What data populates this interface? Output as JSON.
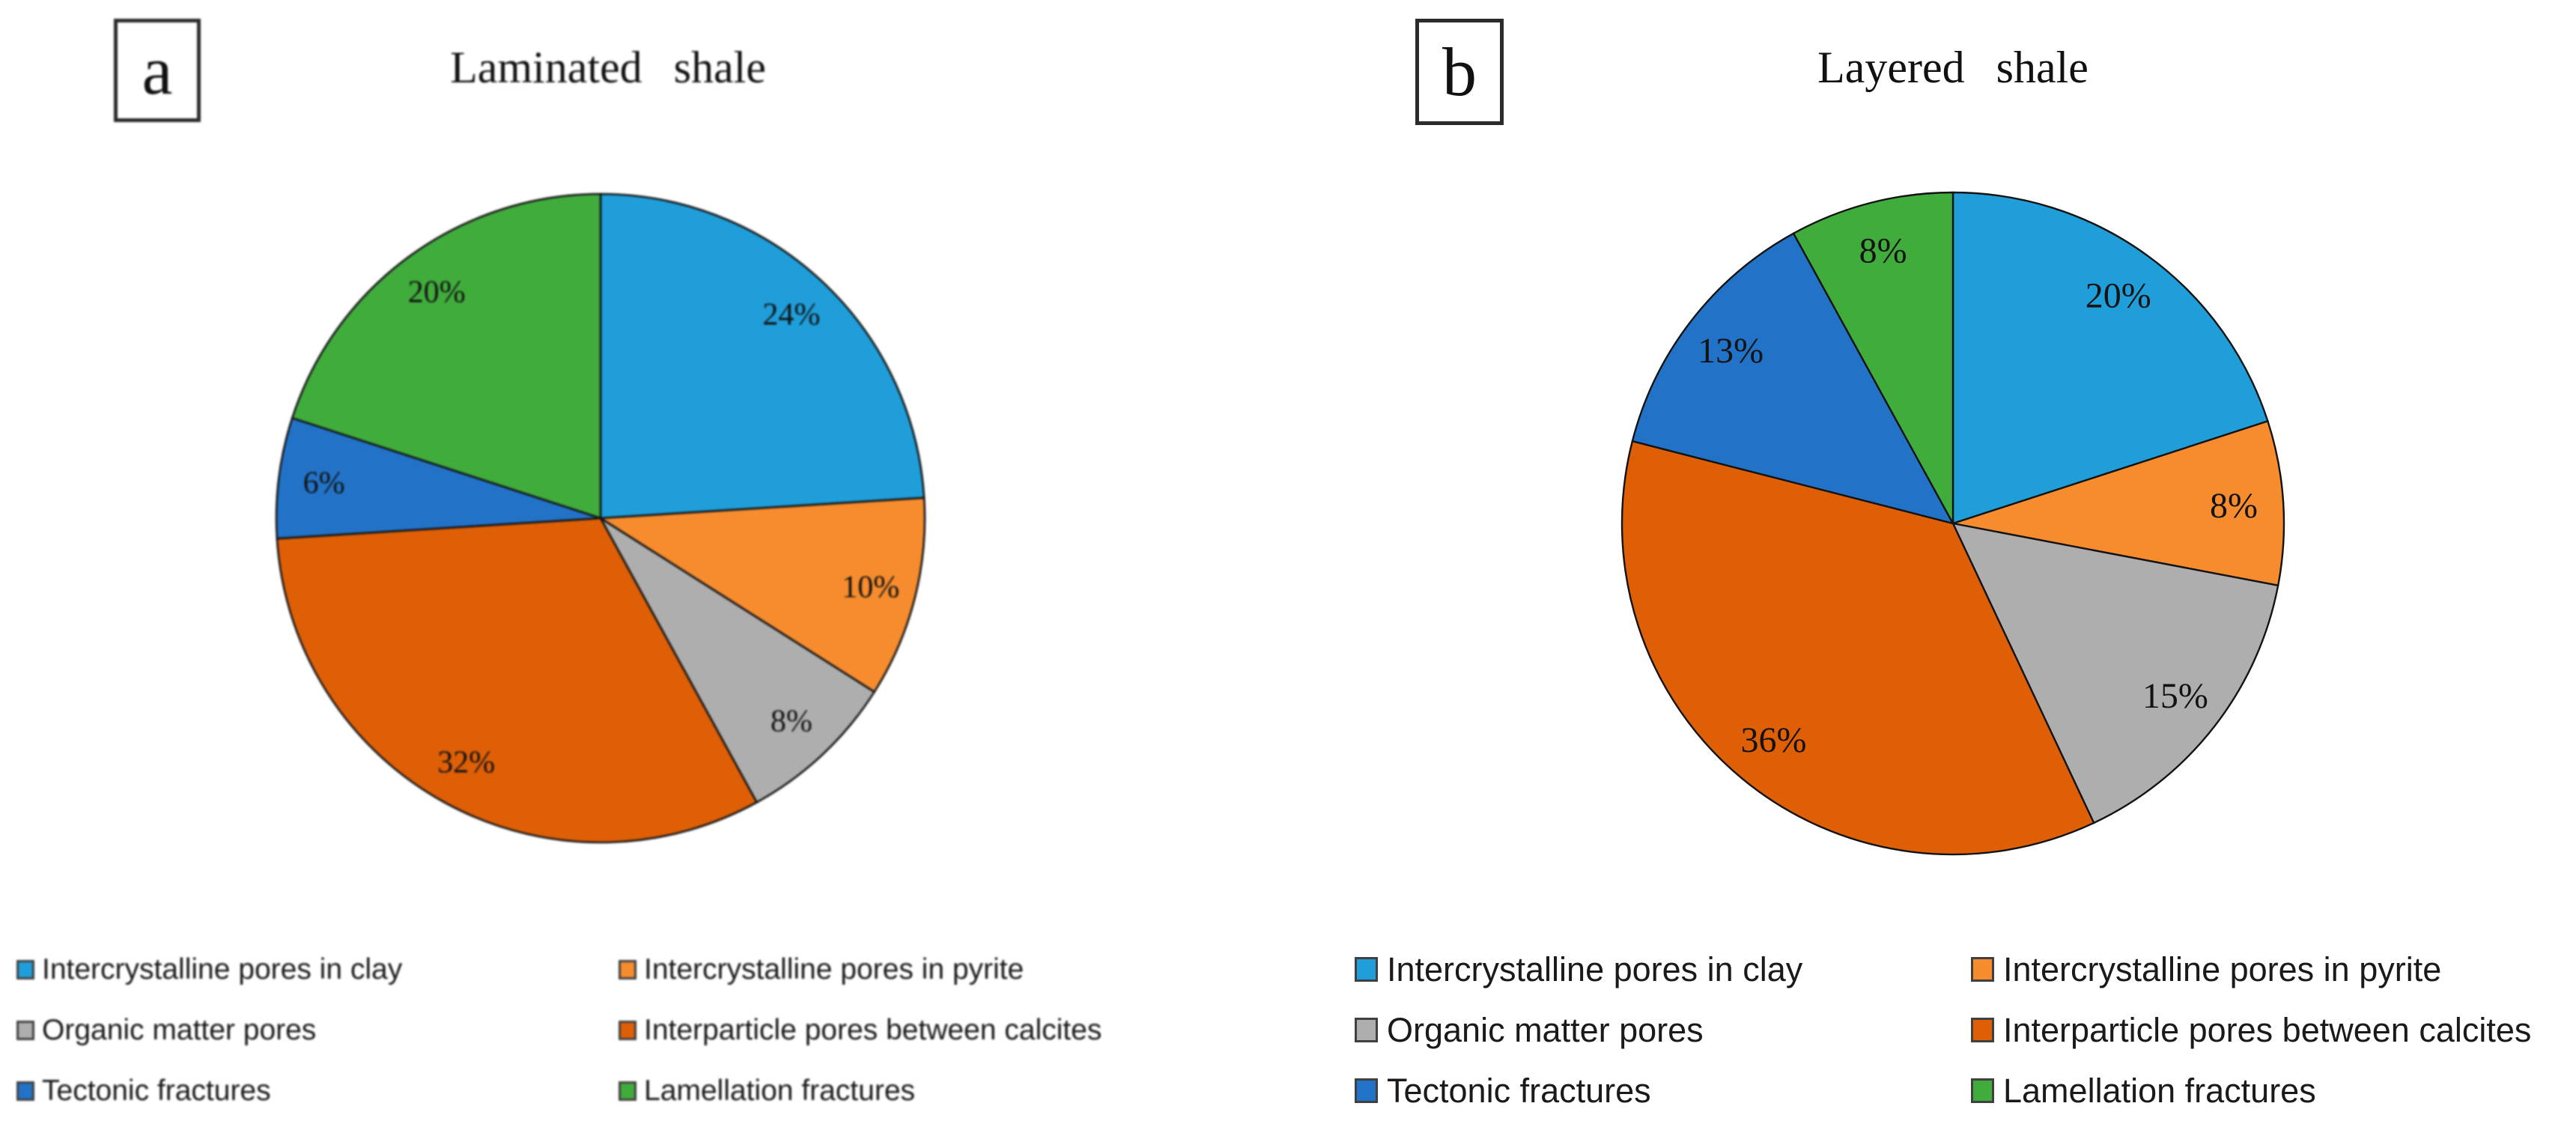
{
  "figure": {
    "background": "#ffffff",
    "text_color": "#1a1a1a",
    "panel_tags": [
      "a",
      "b"
    ]
  },
  "chart_data": [
    {
      "type": "pie",
      "panel_label": "a",
      "title": "Laminated shale",
      "categories": [
        "Intercrystalline pores in clay",
        "Intercrystalline pores in pyrite",
        "Organic matter pores",
        "Interparticle pores between calcites",
        "Tectonic fractures",
        "Lamellation fractures"
      ],
      "values": [
        24,
        10,
        8,
        32,
        6,
        20
      ],
      "slice_labels": [
        "24%",
        "10%",
        "8%",
        "32%",
        "6%",
        "20%"
      ],
      "colors": [
        "#1F9ED9",
        "#F68C2E",
        "#AEAEAE",
        "#DF5F07",
        "#2273C8",
        "#40AC3C"
      ],
      "stroke_color": "#141414",
      "start_angle_deg": 0,
      "direction": "clockwise",
      "legend_position": "below",
      "legend_columns": 2
    },
    {
      "type": "pie",
      "panel_label": "b",
      "title": "Layered shale",
      "categories": [
        "Intercrystalline pores in clay",
        "Intercrystalline pores in pyrite",
        "Organic matter pores",
        "Interparticle pores between calcites",
        "Tectonic fractures",
        "Lamellation fractures"
      ],
      "values": [
        20,
        8,
        15,
        36,
        13,
        8
      ],
      "slice_labels": [
        "20%",
        "8%",
        "15%",
        "36%",
        "13%",
        "8%"
      ],
      "colors": [
        "#1F9ED9",
        "#F68C2E",
        "#AEAEAE",
        "#DF5F07",
        "#2273C8",
        "#40AC3C"
      ],
      "stroke_color": "#141414",
      "start_angle_deg": 0,
      "direction": "clockwise",
      "legend_position": "below",
      "legend_columns": 2
    }
  ]
}
